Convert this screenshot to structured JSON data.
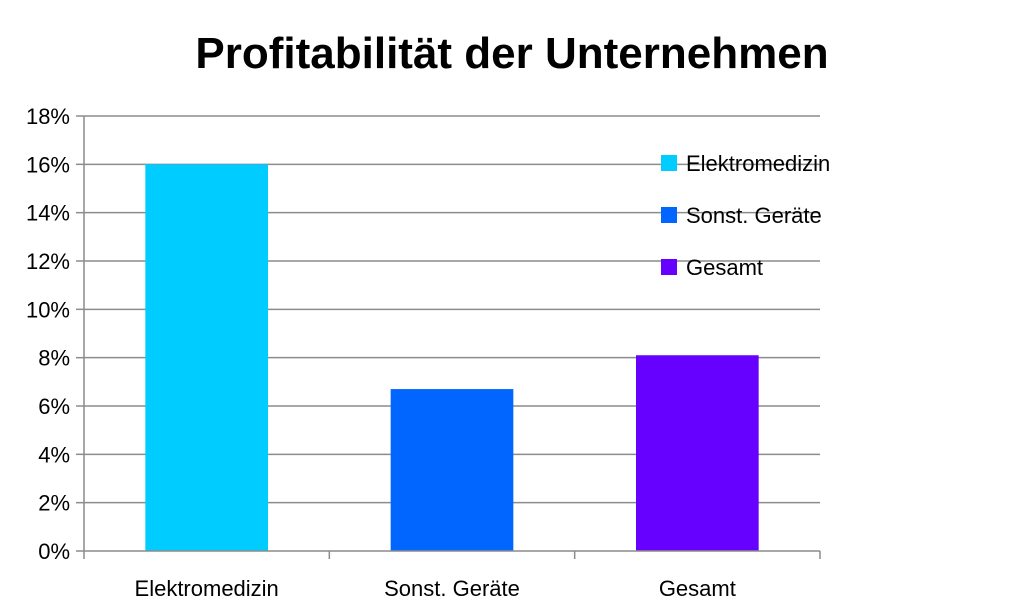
{
  "chart_data": {
    "type": "bar",
    "title": "Profitabilität der Unternehmen",
    "xlabel": "",
    "ylabel": "",
    "categories": [
      "Elektromedizin",
      "Sonst. Geräte",
      "Gesamt"
    ],
    "values": [
      16.0,
      6.7,
      8.1
    ],
    "colors": [
      "#00CCFF",
      "#0066FF",
      "#6600FF"
    ],
    "ylim": [
      0,
      18
    ],
    "yticks": [
      0,
      2,
      4,
      6,
      8,
      10,
      12,
      14,
      16,
      18
    ],
    "ytick_suffix": "%",
    "grid": true,
    "legend": {
      "placement": "right",
      "entries": [
        "Elektromedizin",
        "Sonst. Geräte",
        "Gesamt"
      ]
    }
  }
}
